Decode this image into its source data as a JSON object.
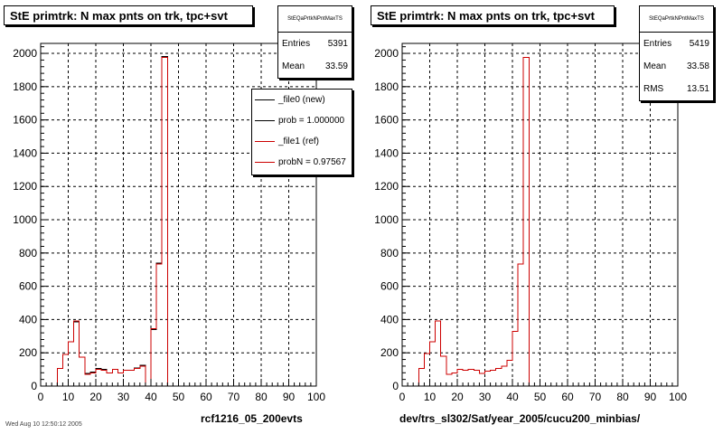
{
  "chart_data": [
    {
      "type": "histogram",
      "title": "StE primtrk: N max pnts on trk, tpc+svt",
      "xlabel": "rcf1216_05_200evts",
      "ylabel": "",
      "xlim": [
        0,
        100
      ],
      "ylim": [
        0,
        2060
      ],
      "x_ticks": [
        "0",
        "10",
        "20",
        "30",
        "40",
        "50",
        "60",
        "70",
        "80",
        "90",
        "100"
      ],
      "y_ticks": [
        "0",
        "200",
        "400",
        "600",
        "800",
        "1000",
        "1200",
        "1400",
        "1600",
        "1800",
        "2000"
      ],
      "grid": true,
      "stats": {
        "name": "StEQaPrtkNPntMaxTS",
        "rows": [
          {
            "label": "Entries",
            "value": "5391"
          },
          {
            "label": "Mean",
            "value": "33.59"
          }
        ]
      },
      "legend": {
        "position": "top-right",
        "entries": [
          {
            "label": "_file0 (new)",
            "color": "#000000"
          },
          {
            "label": "prob = 1.000000",
            "color": "#000000"
          },
          {
            "label": "_file1 (ref)",
            "color": "#cc0000"
          },
          {
            "label": "probN = 0.97567",
            "color": "#cc0000"
          }
        ]
      },
      "bin_width": 2,
      "bin_starts": [
        0,
        2,
        4,
        6,
        8,
        10,
        12,
        14,
        16,
        18,
        20,
        22,
        24,
        26,
        28,
        30,
        32,
        34,
        36,
        38,
        40,
        42,
        44,
        46,
        48
      ],
      "series": [
        {
          "name": "_file0 (new)",
          "color": "#000000",
          "values": [
            0,
            0,
            0,
            105,
            190,
            265,
            385,
            175,
            75,
            85,
            105,
            100,
            80,
            100,
            80,
            95,
            95,
            110,
            125,
            0,
            340,
            740,
            1980,
            0,
            0
          ]
        },
        {
          "name": "_file1 (ref)",
          "color": "#cc0000",
          "values": [
            0,
            0,
            0,
            105,
            190,
            265,
            390,
            175,
            70,
            80,
            100,
            95,
            80,
            100,
            80,
            95,
            95,
            105,
            120,
            0,
            345,
            735,
            1975,
            0,
            0
          ]
        }
      ]
    },
    {
      "type": "histogram",
      "title": "StE primtrk: N max pnts on trk, tpc+svt",
      "xlabel": "dev/trs_sl302/Sat/year_2005/cucu200_minbias/",
      "ylabel": "",
      "xlim": [
        0,
        100
      ],
      "ylim": [
        0,
        2060
      ],
      "x_ticks": [
        "0",
        "10",
        "20",
        "30",
        "40",
        "50",
        "60",
        "70",
        "80",
        "90",
        "100"
      ],
      "y_ticks": [
        "0",
        "200",
        "400",
        "600",
        "800",
        "1000",
        "1200",
        "1400",
        "1600",
        "1800",
        "2000"
      ],
      "grid": true,
      "stats": {
        "name": "StEQaPrtkNPntMaxTS",
        "rows": [
          {
            "label": "Entries",
            "value": "5419"
          },
          {
            "label": "Mean",
            "value": "33.58"
          },
          {
            "label": "RMS",
            "value": "13.51"
          }
        ]
      },
      "bin_width": 2,
      "bin_starts": [
        0,
        2,
        4,
        6,
        8,
        10,
        12,
        14,
        16,
        18,
        20,
        22,
        24,
        26,
        28,
        30,
        32,
        34,
        36,
        38,
        40,
        42,
        44,
        46,
        48
      ],
      "series": [
        {
          "name": "_file1 (ref)",
          "color": "#cc0000",
          "values": [
            0,
            0,
            0,
            105,
            195,
            265,
            390,
            180,
            70,
            80,
            100,
            95,
            100,
            95,
            75,
            90,
            95,
            105,
            120,
            155,
            330,
            735,
            1975,
            0,
            0
          ]
        }
      ]
    }
  ],
  "footer": "Wed Aug 10 12:50:12 2005"
}
